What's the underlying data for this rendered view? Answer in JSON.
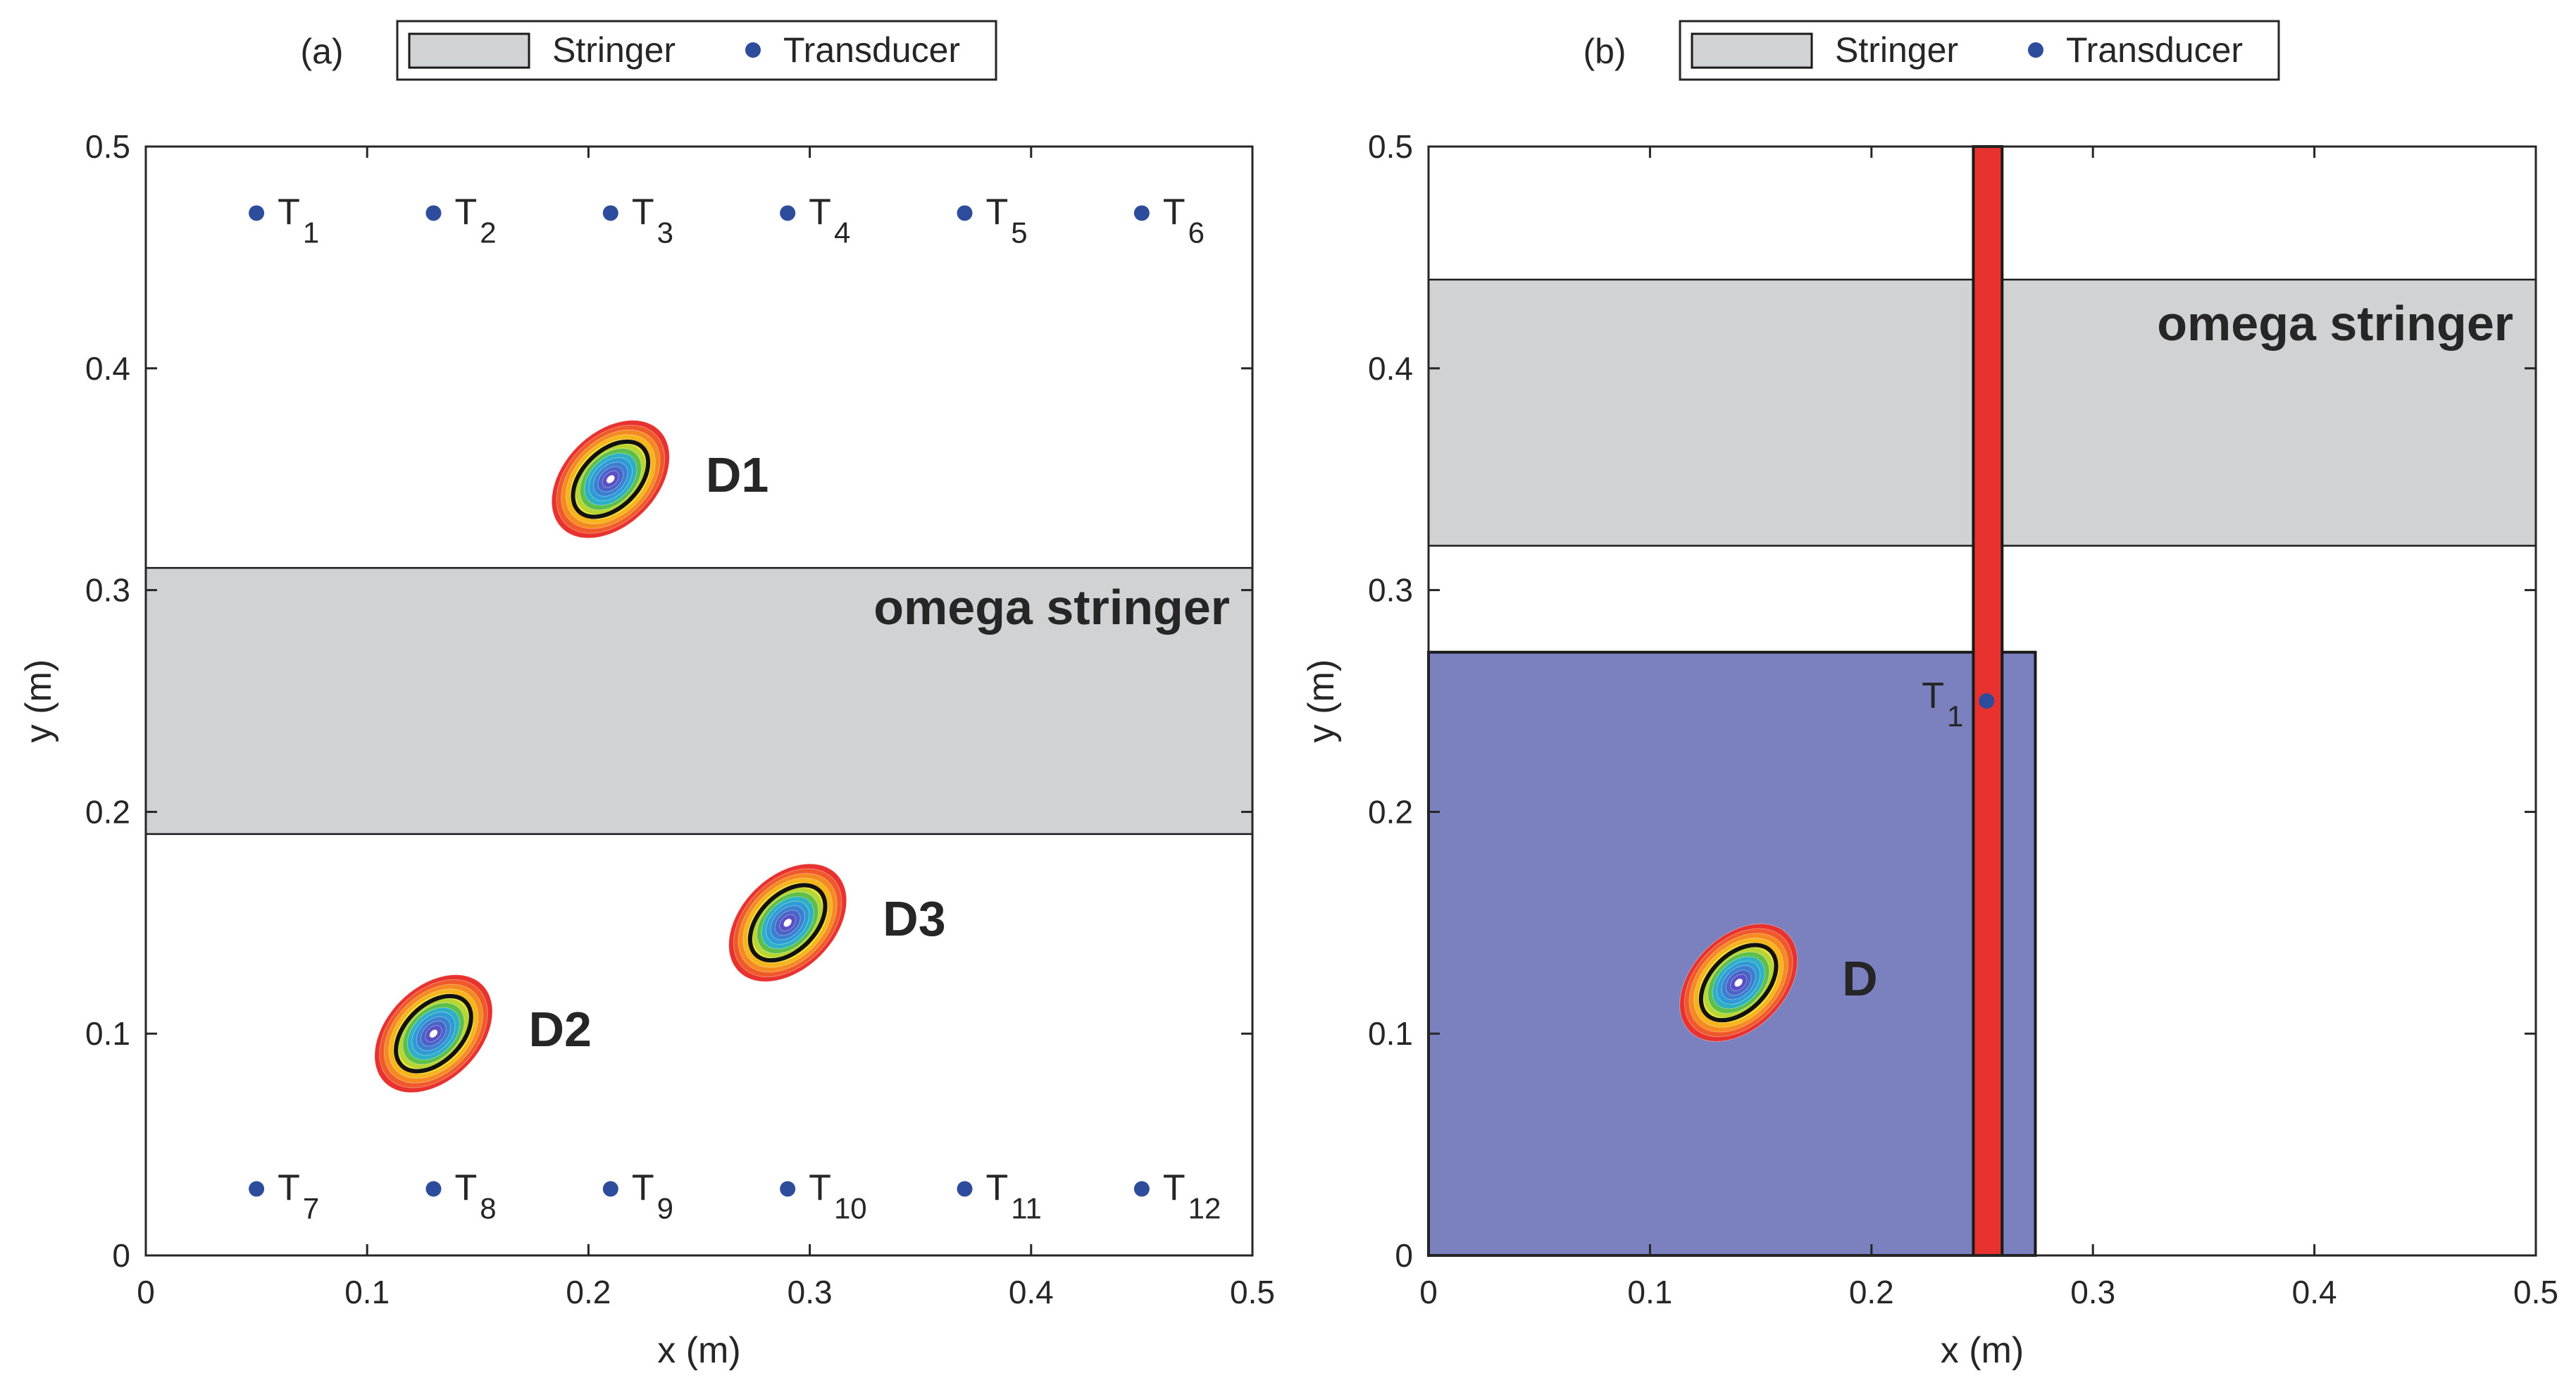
{
  "colors": {
    "stringer_fill": "#d1d2d4",
    "transducer": "#2e4c9c",
    "region_fill": "#7b80be",
    "beam_fill": "#e8322f",
    "axis": "#262626",
    "contours": [
      "#e8322f",
      "#f0592a",
      "#f58b20",
      "#f6b51a",
      "#f2e21a",
      "#b9d532",
      "#5bbf4a",
      "#2db0c6",
      "#2e9bd6",
      "#3a7fd0",
      "#4a63c8",
      "#5a4fc4",
      "#ffffff"
    ]
  },
  "chart_data": [
    {
      "type": "scatter",
      "panel_label": "(a)",
      "xlabel": "x (m)",
      "ylabel": "y (m)",
      "xlim": [
        0,
        0.5
      ],
      "ylim": [
        0,
        0.5
      ],
      "xticks": [
        0,
        0.1,
        0.2,
        0.3,
        0.4,
        0.5
      ],
      "yticks": [
        0,
        0.1,
        0.2,
        0.3,
        0.4,
        0.5
      ],
      "xtick_labels": [
        "0",
        "0.1",
        "0.2",
        "0.3",
        "0.4",
        "0.5"
      ],
      "ytick_labels": [
        "0",
        "0.1",
        "0.2",
        "0.3",
        "0.4",
        "0.5"
      ],
      "legend": [
        {
          "label": "Stringer",
          "kind": "patch"
        },
        {
          "label": "Transducer",
          "kind": "marker"
        }
      ],
      "stringers": [
        {
          "label": "omega stringer",
          "x": [
            0,
            0.5
          ],
          "y": [
            0.19,
            0.31
          ]
        }
      ],
      "transducers": [
        {
          "name": "T",
          "sub": "1",
          "x": 0.05,
          "y": 0.47
        },
        {
          "name": "T",
          "sub": "2",
          "x": 0.13,
          "y": 0.47
        },
        {
          "name": "T",
          "sub": "3",
          "x": 0.21,
          "y": 0.47
        },
        {
          "name": "T",
          "sub": "4",
          "x": 0.29,
          "y": 0.47
        },
        {
          "name": "T",
          "sub": "5",
          "x": 0.37,
          "y": 0.47
        },
        {
          "name": "T",
          "sub": "6",
          "x": 0.45,
          "y": 0.47
        },
        {
          "name": "T",
          "sub": "7",
          "x": 0.05,
          "y": 0.03
        },
        {
          "name": "T",
          "sub": "8",
          "x": 0.13,
          "y": 0.03
        },
        {
          "name": "T",
          "sub": "9",
          "x": 0.21,
          "y": 0.03
        },
        {
          "name": "T",
          "sub": "10",
          "x": 0.29,
          "y": 0.03
        },
        {
          "name": "T",
          "sub": "11",
          "x": 0.37,
          "y": 0.03
        },
        {
          "name": "T",
          "sub": "12",
          "x": 0.45,
          "y": 0.03
        }
      ],
      "damages": [
        {
          "label": "D1",
          "x": 0.21,
          "y": 0.35
        },
        {
          "label": "D2",
          "x": 0.13,
          "y": 0.1
        },
        {
          "label": "D3",
          "x": 0.29,
          "y": 0.15
        }
      ]
    },
    {
      "type": "scatter",
      "panel_label": "(b)",
      "xlabel": "x (m)",
      "ylabel": "y (m)",
      "xlim": [
        0,
        0.5
      ],
      "ylim": [
        0,
        0.5
      ],
      "xticks": [
        0,
        0.1,
        0.2,
        0.3,
        0.4,
        0.5
      ],
      "yticks": [
        0,
        0.1,
        0.2,
        0.3,
        0.4,
        0.5
      ],
      "xtick_labels": [
        "0",
        "0.1",
        "0.2",
        "0.3",
        "0.4",
        "0.5"
      ],
      "ytick_labels": [
        "0",
        "0.1",
        "0.2",
        "0.3",
        "0.4",
        "0.5"
      ],
      "legend": [
        {
          "label": "Stringer",
          "kind": "patch"
        },
        {
          "label": "Transducer",
          "kind": "marker"
        }
      ],
      "stringers": [
        {
          "label": "omega stringer",
          "x": [
            0,
            0.5
          ],
          "y": [
            0.32,
            0.44
          ]
        }
      ],
      "region": {
        "x": [
          0,
          0.274
        ],
        "y": [
          0,
          0.272
        ]
      },
      "beam": {
        "x": [
          0.246,
          0.259
        ],
        "y": [
          0,
          0.5
        ]
      },
      "transducers": [
        {
          "name": "T",
          "sub": "1",
          "x": 0.252,
          "y": 0.25
        }
      ],
      "damages": [
        {
          "label": "D",
          "x": 0.14,
          "y": 0.123
        }
      ]
    }
  ]
}
